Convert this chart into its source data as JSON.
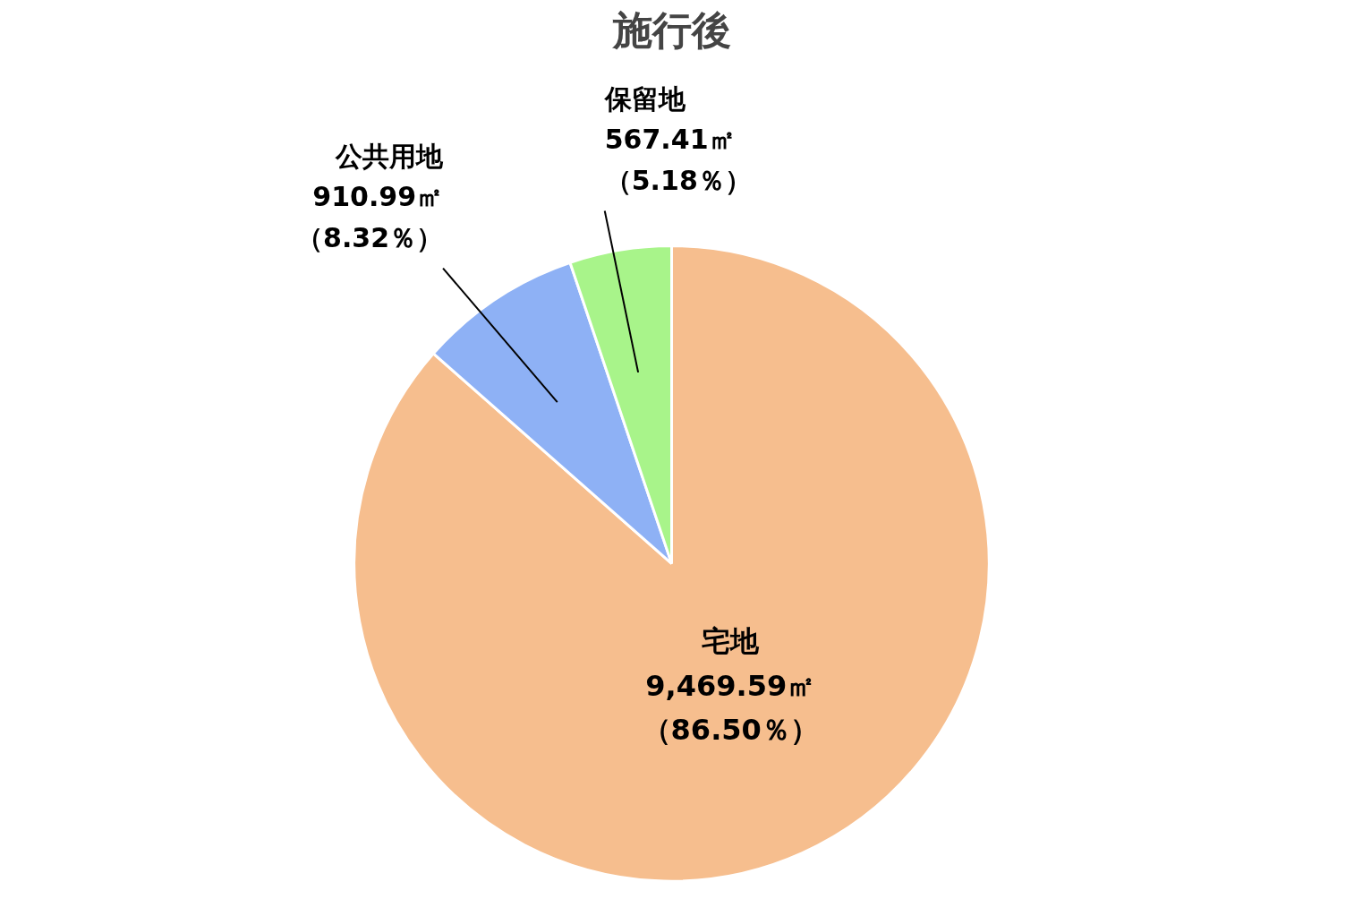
{
  "chart_data": {
    "type": "pie",
    "title": "施行後",
    "categories": [
      "宅地",
      "公共用地",
      "保留地"
    ],
    "values": [
      9469.59,
      910.99,
      567.41
    ],
    "colors": [
      "#f6be8e",
      "#8eb1f5",
      "#a8f48a"
    ],
    "value_labels": [
      "9,469.59㎡（86.50％）",
      "910.99㎡（8.32％）",
      "567.41㎡（5.18％）"
    ]
  }
}
